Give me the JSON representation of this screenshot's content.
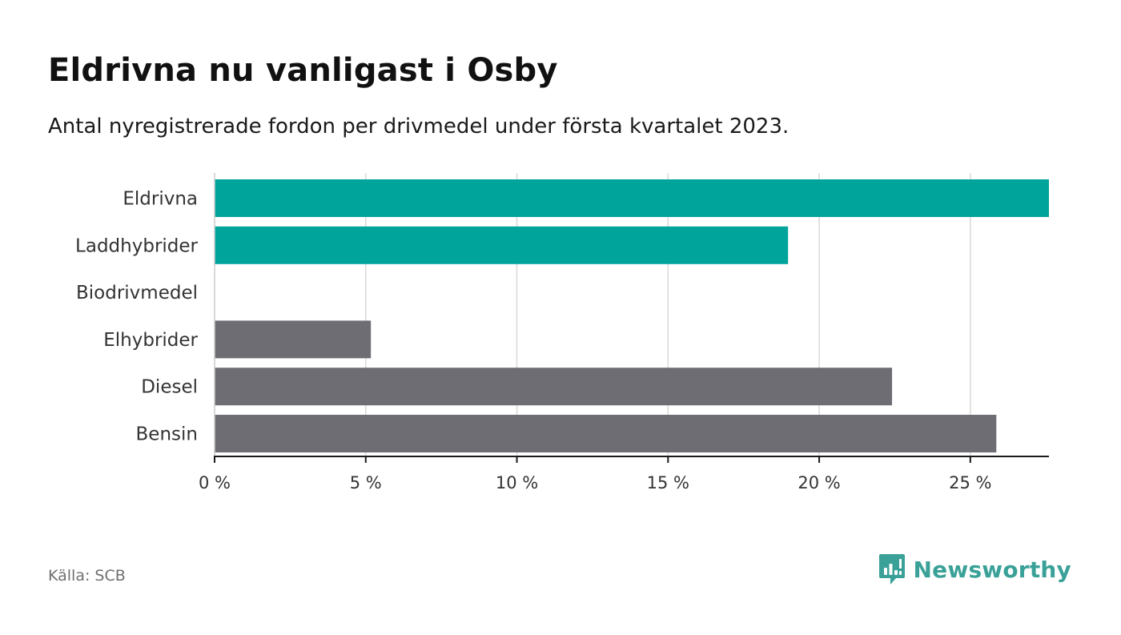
{
  "title": "Eldrivna nu vanligast i Osby",
  "subtitle": "Antal nyregistrerade fordon per drivmedel under första kvartalet 2023.",
  "source": "Källa: SCB",
  "brand": {
    "name": "Newsworthy",
    "icon": "newsworthy-logo-icon",
    "color": "#3aa198"
  },
  "chart_data": {
    "type": "bar",
    "orientation": "horizontal",
    "categories": [
      "Eldrivna",
      "Laddhybrider",
      "Biodrivmedel",
      "Elhybrider",
      "Diesel",
      "Bensin"
    ],
    "values": [
      27.6,
      18.97,
      0,
      5.17,
      22.41,
      25.86
    ],
    "colors": [
      "#00a49a",
      "#00a49a",
      "#00a49a",
      "#6e6d74",
      "#6e6d74",
      "#6e6d74"
    ],
    "xlim": [
      0,
      27.6
    ],
    "xticks": [
      0,
      5,
      10,
      15,
      20,
      25
    ],
    "xtick_labels": [
      "0 %",
      "5 %",
      "10 %",
      "15 %",
      "20 %",
      "25 %"
    ],
    "grid": true,
    "xlabel": "",
    "ylabel": ""
  }
}
